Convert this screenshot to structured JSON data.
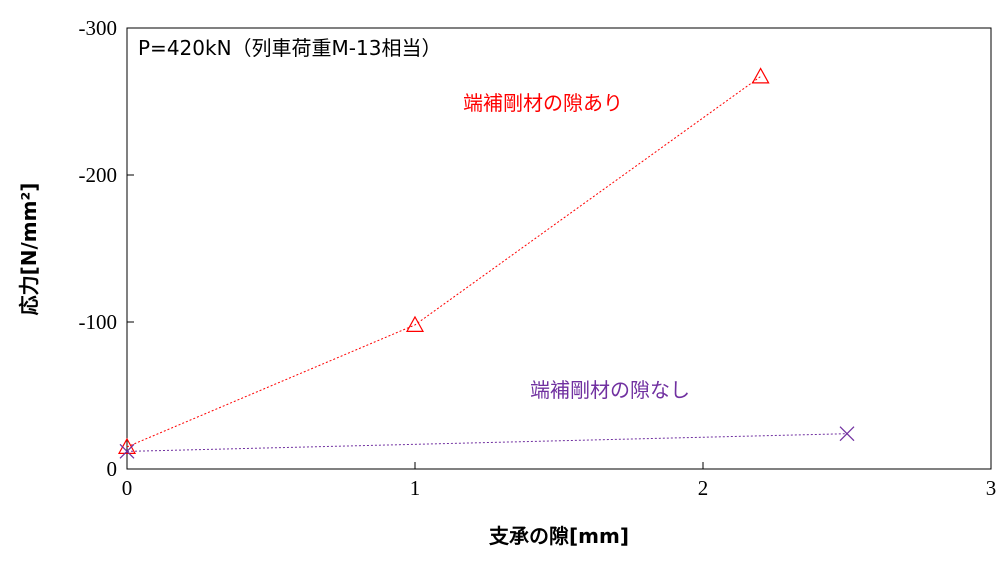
{
  "chart_data": {
    "type": "line",
    "title": "",
    "xlabel": "支承の隙[mm]",
    "ylabel": "応力[N/mm²]",
    "xlim": [
      0,
      3
    ],
    "ylim": [
      0,
      -300
    ],
    "x_ticks": [
      0,
      1,
      2,
      3
    ],
    "y_ticks": [
      0,
      -100,
      -200,
      -300
    ],
    "x_tick_labels": [
      "0",
      "1",
      "2",
      "3"
    ],
    "y_tick_labels": [
      "0",
      "-100",
      "-200",
      "-300"
    ],
    "grid": false,
    "legend": "none",
    "annotations": [
      {
        "text": "P=420kN（列車荷重M-13相当）",
        "color": "#000000"
      },
      {
        "text": "端補剛材の隙あり",
        "color": "#ff0000"
      },
      {
        "text": "端補剛材の隙なし",
        "color": "#7030a0"
      }
    ],
    "series": [
      {
        "marker": "triangle",
        "color": "#ff0000",
        "x": [
          0,
          1,
          2.2
        ],
        "y": [
          -15,
          -98,
          -267
        ]
      },
      {
        "marker": "x",
        "color": "#7030a0",
        "x": [
          0,
          2.5
        ],
        "y": [
          -12,
          -24
        ]
      }
    ]
  }
}
